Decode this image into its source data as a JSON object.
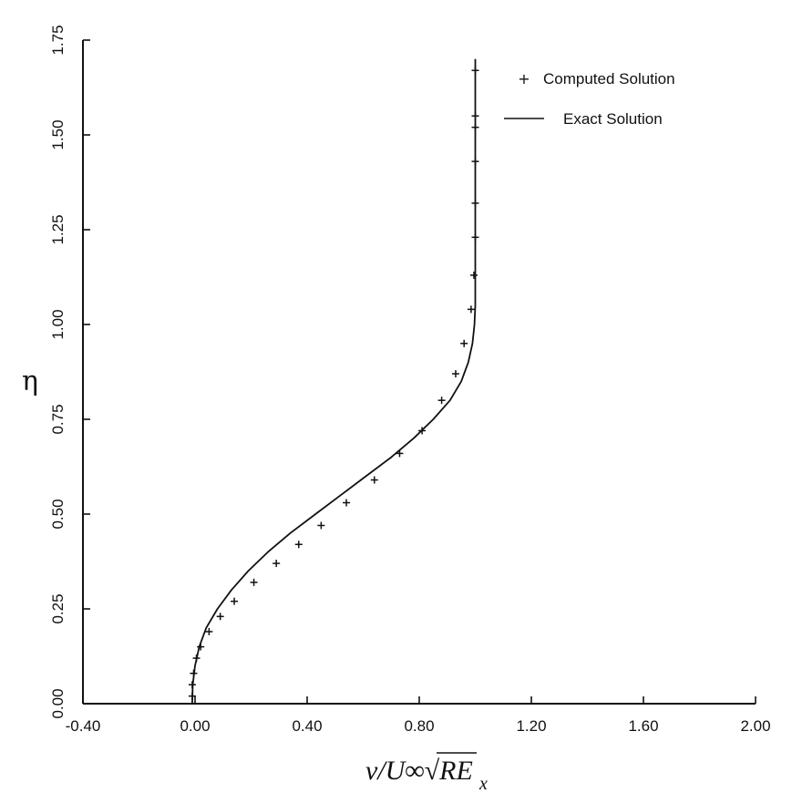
{
  "chart_data": {
    "type": "line",
    "title": "",
    "xlabel": "ν/U∞√RE",
    "xlabel_sub": "x",
    "ylabel": "η",
    "xlim": [
      -0.4,
      2.0
    ],
    "ylim": [
      0.0,
      1.75
    ],
    "xticks": [
      "-0.40",
      "0.00",
      "0.40",
      "0.80",
      "1.20",
      "1.60",
      "2.00"
    ],
    "yticks": [
      "0.00",
      "0.25",
      "0.50",
      "0.75",
      "1.00",
      "1.25",
      "1.50",
      "1.75"
    ],
    "grid": false,
    "legend_position": "top-right",
    "series": [
      {
        "name": "Computed Solution",
        "style": "markers-plus",
        "x": [
          -0.01,
          -0.01,
          -0.005,
          0.005,
          0.02,
          0.05,
          0.09,
          0.14,
          0.21,
          0.29,
          0.37,
          0.45,
          0.54,
          0.64,
          0.73,
          0.81,
          0.88,
          0.93,
          0.96,
          0.985,
          0.995,
          1.0,
          1.0,
          1.0,
          1.0,
          1.0,
          1.0
        ],
        "y": [
          0.02,
          0.05,
          0.08,
          0.12,
          0.15,
          0.19,
          0.23,
          0.27,
          0.32,
          0.37,
          0.42,
          0.47,
          0.53,
          0.59,
          0.66,
          0.72,
          0.8,
          0.87,
          0.95,
          1.04,
          1.13,
          1.23,
          1.32,
          1.43,
          1.52,
          1.55,
          1.67
        ]
      },
      {
        "name": "Exact Solution",
        "style": "solid-line",
        "x": [
          -0.01,
          -0.008,
          0.0,
          0.015,
          0.04,
          0.08,
          0.13,
          0.19,
          0.26,
          0.34,
          0.43,
          0.52,
          0.61,
          0.7,
          0.78,
          0.85,
          0.91,
          0.95,
          0.975,
          0.99,
          0.997,
          1.0,
          1.0,
          1.0
        ],
        "y": [
          0.0,
          0.05,
          0.1,
          0.15,
          0.2,
          0.25,
          0.3,
          0.35,
          0.4,
          0.45,
          0.5,
          0.55,
          0.6,
          0.65,
          0.7,
          0.75,
          0.8,
          0.85,
          0.9,
          0.95,
          1.0,
          1.05,
          1.1,
          1.7
        ]
      }
    ]
  }
}
